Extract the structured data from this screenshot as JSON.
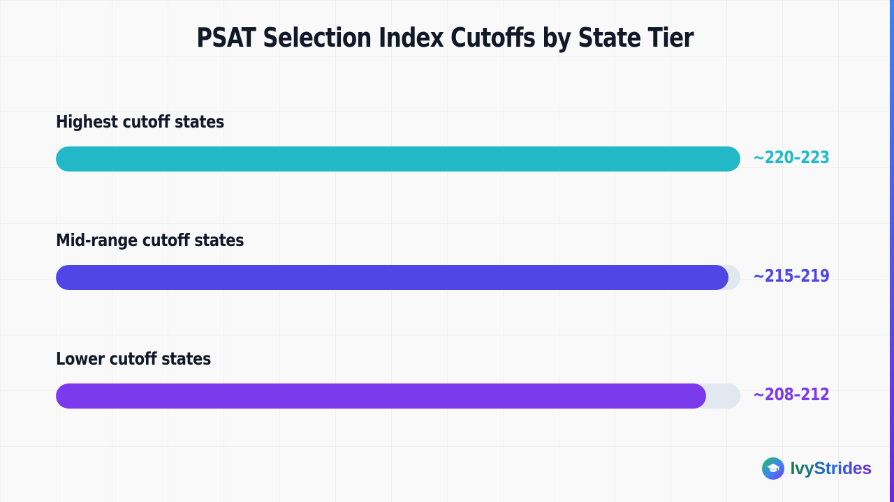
{
  "chart_data": {
    "type": "bar",
    "orientation": "horizontal",
    "title": "PSAT Selection Index Cutoffs by State Tier",
    "categories": [
      "Highest cutoff states",
      "Mid-range cutoff states",
      "Lower cutoff states"
    ],
    "value_labels": [
      "~220–223",
      "~215–219",
      "~208–212"
    ],
    "values": [
      100,
      98.3,
      95
    ],
    "value_unit": "percent of bar track",
    "colors": [
      "#22b8c8",
      "#4f46e5",
      "#7c3aed"
    ],
    "track_color": "#e2e8f0",
    "legend": "none",
    "grid": true
  },
  "brand": {
    "name": "IvyStrides",
    "logo_icon": "graduation-cap-icon"
  },
  "accent": "#4f46e5"
}
